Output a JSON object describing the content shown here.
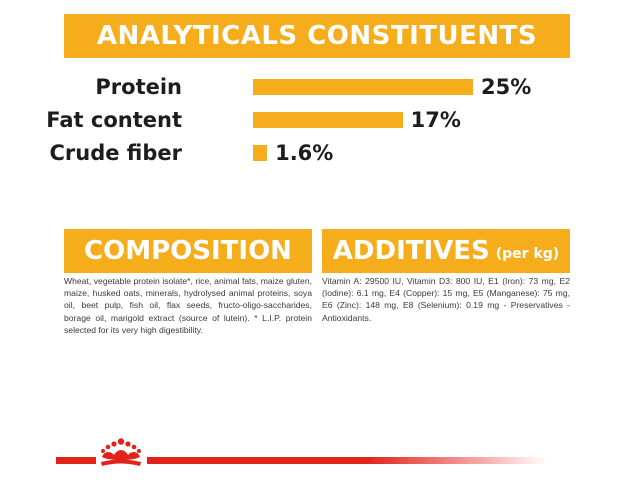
{
  "analytical": {
    "title": "ANALYTICALS CONSTITUENTS",
    "rows": [
      {
        "label": "Protein",
        "value": "25%",
        "percent": 25
      },
      {
        "label": "Fat content",
        "value": "17%",
        "percent": 17
      },
      {
        "label": "Crude fiber",
        "value": "1.6%",
        "percent": 1.6
      }
    ]
  },
  "composition": {
    "title": "COMPOSITION",
    "text": "Wheat, vegetable protein isolate*, rice, animal fats, maize gluten, maize, husked oats, minerals, hydrolysed animal proteins, soya oil, beet pulp, fish oil, flax seeds, fructo-oligo-saccharides, borage oil, marigold extract (source of lutein). * L.I.P. protein selected for its very high digestibility."
  },
  "additives": {
    "title": "ADDITIVES",
    "unit": "(per kg)",
    "text": "Vitamin A: 29500 IU, Vitamin D3: 800 IU, E1 (Iron): 73 mg, E2 (Iodine): 6.1 mg, E4 (Copper): 15 mg, E5 (Manganese): 75 mg, E6 (Zinc): 148 mg, E8 (Selenium): 0.19 mg - Preservatives - Antioxidants."
  },
  "colors": {
    "accent": "#f6ad1c",
    "brand_red": "#e2231a"
  },
  "logo": {
    "icon": "crown-logo-icon"
  }
}
